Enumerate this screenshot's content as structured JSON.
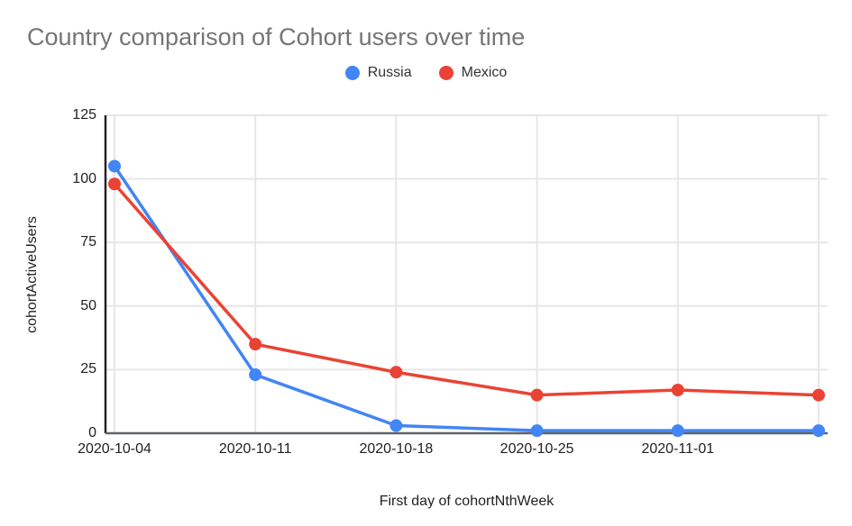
{
  "chart_data": {
    "type": "line",
    "title": "Country comparison of Cohort users over time",
    "xlabel": "First day of cohortNthWeek",
    "ylabel": "cohortActiveUsers",
    "categories": [
      "2020-10-04",
      "2020-10-11",
      "2020-10-18",
      "2020-10-25",
      "2020-11-01",
      ""
    ],
    "series": [
      {
        "name": "Russia",
        "color": "#4285f4",
        "values": [
          105,
          23,
          3,
          1,
          1,
          1
        ]
      },
      {
        "name": "Mexico",
        "color": "#ea4335",
        "values": [
          98,
          35,
          24,
          15,
          17,
          15
        ]
      }
    ],
    "ylim": [
      0,
      125
    ],
    "yticks": [
      0,
      25,
      50,
      75,
      100,
      125
    ],
    "grid": true,
    "legend_position": "top"
  },
  "style_colors": {
    "title_text": "#757575",
    "tick_text": "#222222",
    "gridline": "#e6e6e6",
    "y_axis_line": "#222222",
    "baseline": "#5f6368"
  }
}
